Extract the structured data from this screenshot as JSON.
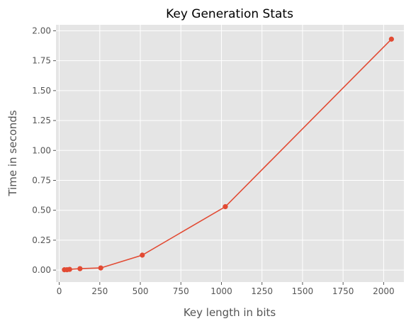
{
  "chart_data": {
    "type": "line",
    "title": "Key Generation Stats",
    "xlabel": "Key length in bits",
    "ylabel": "Time in seconds",
    "x": [
      32,
      48,
      64,
      128,
      256,
      512,
      1024,
      2048
    ],
    "series": [
      {
        "values": [
          0.003,
          0.003,
          0.006,
          0.012,
          0.018,
          0.125,
          0.53,
          1.93
        ]
      }
    ],
    "xlim": [
      -20,
      2125
    ],
    "ylim": [
      -0.1,
      2.05
    ],
    "xticks": [
      0,
      250,
      500,
      750,
      1000,
      1250,
      1500,
      1750,
      2000
    ],
    "xtick_labels": [
      "0",
      "250",
      "500",
      "750",
      "1000",
      "1250",
      "1500",
      "1750",
      "2000"
    ],
    "yticks": [
      0,
      0.25,
      0.5,
      0.75,
      1,
      1.25,
      1.5,
      1.75,
      2
    ],
    "ytick_labels": [
      "0.00",
      "0.25",
      "0.50",
      "0.75",
      "1.00",
      "1.25",
      "1.50",
      "1.75",
      "2.00"
    ],
    "grid": true,
    "colors": {
      "background": "#e5e5e5",
      "grid": "#ffffff",
      "line": "#e24a33",
      "ticks": "#555555"
    }
  }
}
